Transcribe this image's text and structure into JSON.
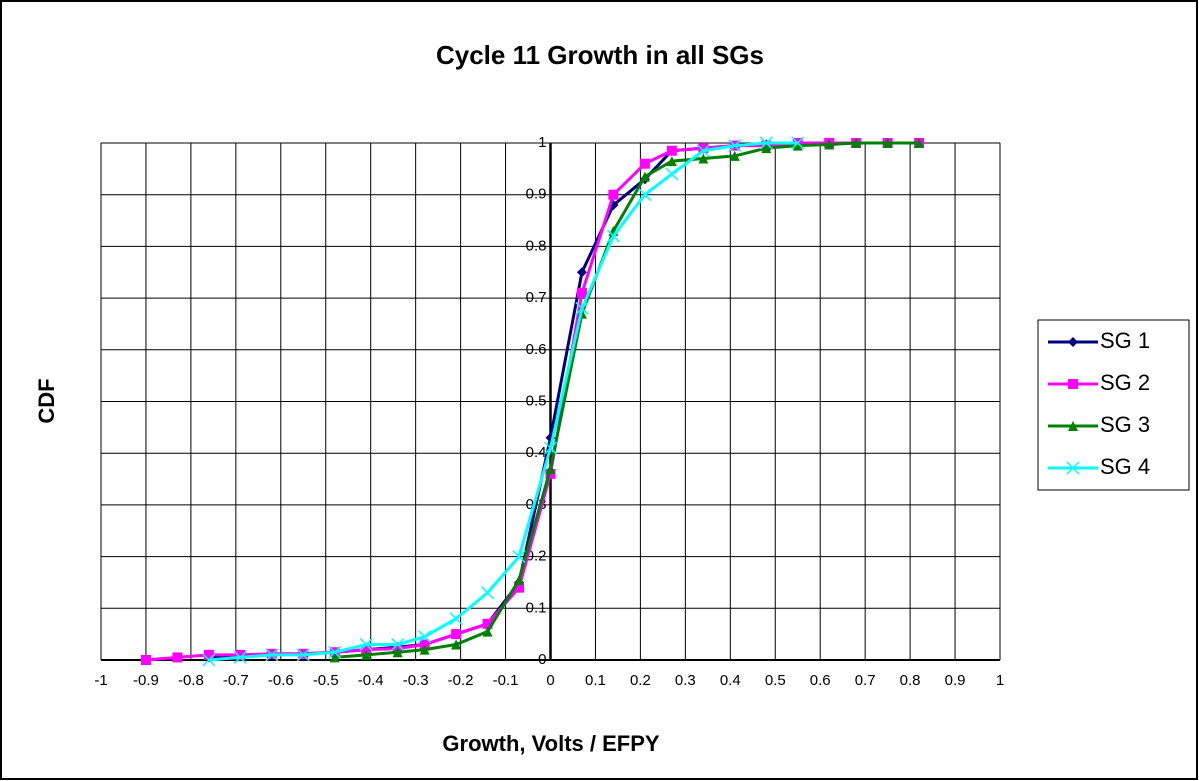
{
  "chart_data": {
    "type": "line",
    "title": "Cycle 11 Growth in all SGs",
    "x_label": "Growth, Volts / EFPY",
    "y_label": "CDF",
    "xlim": [
      -1,
      1
    ],
    "ylim": [
      0,
      1
    ],
    "xticks": [
      -1,
      -0.9,
      -0.8,
      -0.7,
      -0.6,
      -0.5,
      -0.4,
      -0.3,
      -0.2,
      -0.1,
      0,
      0.1,
      0.2,
      0.3,
      0.4,
      0.5,
      0.6,
      0.7,
      0.8,
      0.9,
      1
    ],
    "yticks": [
      0,
      0.1,
      0.2,
      0.3,
      0.4,
      0.5,
      0.6,
      0.7,
      0.8,
      0.9,
      1
    ],
    "grid": true,
    "legend": "right",
    "series": [
      {
        "name": "SG 1",
        "color": "#000080",
        "marker": "diamond",
        "x": [
          -0.76,
          -0.69,
          -0.62,
          -0.55,
          -0.48,
          -0.41,
          -0.34,
          -0.28,
          -0.21,
          -0.14,
          -0.07,
          0,
          0.07,
          0.14,
          0.21,
          0.27,
          0.34,
          0.41,
          0.48,
          0.55,
          0.62,
          0.68
        ],
        "values": [
          0.005,
          0.01,
          0.01,
          0.012,
          0.015,
          0.02,
          0.025,
          0.03,
          0.05,
          0.07,
          0.15,
          0.43,
          0.75,
          0.88,
          0.93,
          0.985,
          0.99,
          0.995,
          0.997,
          1,
          1,
          1
        ]
      },
      {
        "name": "SG 2",
        "color": "#ff00ff",
        "marker": "square",
        "x": [
          -0.9,
          -0.83,
          -0.76,
          -0.69,
          -0.62,
          -0.55,
          -0.48,
          -0.41,
          -0.34,
          -0.28,
          -0.21,
          -0.14,
          -0.07,
          0,
          0.07,
          0.14,
          0.21,
          0.27,
          0.34,
          0.41,
          0.48,
          0.55,
          0.62,
          0.68,
          0.75,
          0.82
        ],
        "values": [
          0,
          0.005,
          0.01,
          0.01,
          0.012,
          0.012,
          0.015,
          0.02,
          0.022,
          0.03,
          0.05,
          0.07,
          0.14,
          0.36,
          0.71,
          0.9,
          0.96,
          0.985,
          0.99,
          0.995,
          0.995,
          1,
          1,
          1,
          1,
          1
        ]
      },
      {
        "name": "SG 3",
        "color": "#008000",
        "marker": "triangle",
        "x": [
          -0.48,
          -0.41,
          -0.34,
          -0.28,
          -0.21,
          -0.14,
          -0.07,
          0,
          0.07,
          0.14,
          0.21,
          0.27,
          0.34,
          0.41,
          0.48,
          0.55,
          0.62,
          0.68,
          0.75,
          0.82
        ],
        "values": [
          0.005,
          0.01,
          0.015,
          0.02,
          0.03,
          0.055,
          0.155,
          0.37,
          0.67,
          0.83,
          0.935,
          0.965,
          0.97,
          0.975,
          0.99,
          0.995,
          0.997,
          1,
          1,
          1
        ]
      },
      {
        "name": "SG 4",
        "color": "#00ffff",
        "marker": "x",
        "x": [
          -0.76,
          -0.69,
          -0.62,
          -0.55,
          -0.48,
          -0.41,
          -0.34,
          -0.28,
          -0.21,
          -0.14,
          -0.07,
          0,
          0.07,
          0.14,
          0.21,
          0.27,
          0.34,
          0.41,
          0.48,
          0.55
        ],
        "values": [
          0,
          0.005,
          0.01,
          0.01,
          0.015,
          0.03,
          0.03,
          0.045,
          0.08,
          0.13,
          0.2,
          0.41,
          0.68,
          0.82,
          0.9,
          0.94,
          0.985,
          0.995,
          1,
          1
        ]
      }
    ]
  }
}
